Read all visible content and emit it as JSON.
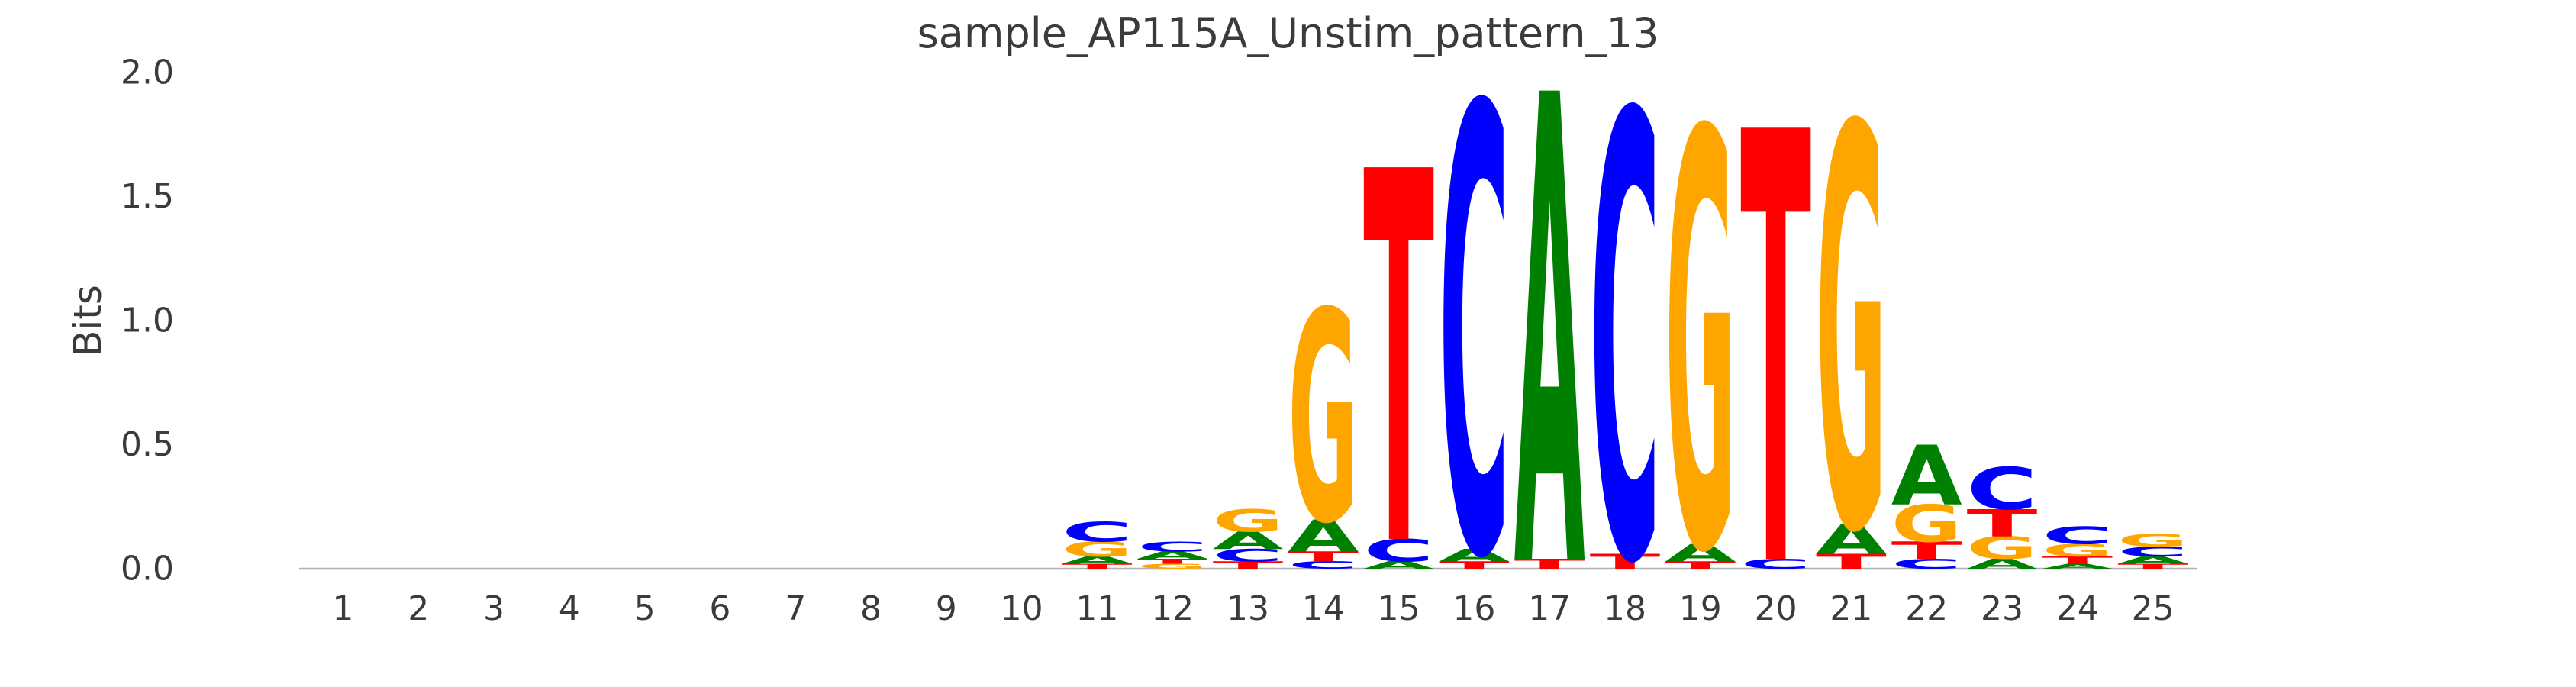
{
  "title": "sample_AP115A_Unstim_pattern_13",
  "ylabel": "Bits",
  "chart_data": {
    "type": "sequence_logo",
    "unit": "bits",
    "title": "sample_AP115A_Unstim_pattern_13",
    "xlabel": "",
    "ylabel": "Bits",
    "ylim": [
      0,
      2
    ],
    "yticks": [
      0.0,
      0.5,
      1.0,
      1.5,
      2.0
    ],
    "xticks": [
      1,
      2,
      3,
      4,
      5,
      6,
      7,
      8,
      9,
      10,
      11,
      12,
      13,
      14,
      15,
      16,
      17,
      18,
      19,
      20,
      21,
      22,
      23,
      24,
      25
    ],
    "consensus_core": "GTCACGTG",
    "consensus_core_positions": [
      14,
      21
    ],
    "grid": false,
    "legend": "none",
    "colors": {
      "A": "#008000",
      "C": "#0000ff",
      "G": "#ffa500",
      "T": "#ff0000"
    },
    "axis_text_color": "#3b3b3b",
    "baseline_color": "#b0b0b0",
    "stack_order": "bottom_to_top",
    "positions": [
      {
        "pos": 1,
        "stack": []
      },
      {
        "pos": 2,
        "stack": []
      },
      {
        "pos": 3,
        "stack": []
      },
      {
        "pos": 4,
        "stack": []
      },
      {
        "pos": 5,
        "stack": []
      },
      {
        "pos": 6,
        "stack": []
      },
      {
        "pos": 7,
        "stack": []
      },
      {
        "pos": 8,
        "stack": []
      },
      {
        "pos": 9,
        "stack": []
      },
      {
        "pos": 10,
        "stack": []
      },
      {
        "pos": 11,
        "stack": [
          {
            "base": "T",
            "bits": 0.02
          },
          {
            "base": "A",
            "bits": 0.03
          },
          {
            "base": "G",
            "bits": 0.06
          },
          {
            "base": "C",
            "bits": 0.08
          }
        ]
      },
      {
        "pos": 12,
        "stack": [
          {
            "base": "G",
            "bits": 0.02
          },
          {
            "base": "T",
            "bits": 0.02
          },
          {
            "base": "A",
            "bits": 0.03
          },
          {
            "base": "C",
            "bits": 0.04
          }
        ]
      },
      {
        "pos": 13,
        "stack": [
          {
            "base": "T",
            "bits": 0.03
          },
          {
            "base": "C",
            "bits": 0.05
          },
          {
            "base": "A",
            "bits": 0.07
          },
          {
            "base": "G",
            "bits": 0.09
          }
        ]
      },
      {
        "pos": 14,
        "stack": [
          {
            "base": "C",
            "bits": 0.03
          },
          {
            "base": "T",
            "bits": 0.04
          },
          {
            "base": "A",
            "bits": 0.13
          },
          {
            "base": "G",
            "bits": 0.85
          }
        ]
      },
      {
        "pos": 15,
        "stack": [
          {
            "base": "A",
            "bits": 0.03
          },
          {
            "base": "C",
            "bits": 0.09
          },
          {
            "base": "T",
            "bits": 1.5
          }
        ]
      },
      {
        "pos": 16,
        "stack": [
          {
            "base": "T",
            "bits": 0.03
          },
          {
            "base": "A",
            "bits": 0.05
          },
          {
            "base": "C",
            "bits": 1.8
          }
        ]
      },
      {
        "pos": 17,
        "stack": [
          {
            "base": "T",
            "bits": 0.04
          },
          {
            "base": "A",
            "bits": 1.89
          }
        ]
      },
      {
        "pos": 18,
        "stack": [
          {
            "base": "T",
            "bits": 0.06
          },
          {
            "base": "C",
            "bits": 1.79
          }
        ]
      },
      {
        "pos": 19,
        "stack": [
          {
            "base": "T",
            "bits": 0.03
          },
          {
            "base": "A",
            "bits": 0.07
          },
          {
            "base": "G",
            "bits": 1.68
          }
        ]
      },
      {
        "pos": 20,
        "stack": [
          {
            "base": "C",
            "bits": 0.04
          },
          {
            "base": "T",
            "bits": 1.74
          }
        ]
      },
      {
        "pos": 21,
        "stack": [
          {
            "base": "T",
            "bits": 0.06
          },
          {
            "base": "A",
            "bits": 0.12
          },
          {
            "base": "G",
            "bits": 1.62
          }
        ]
      },
      {
        "pos": 22,
        "stack": [
          {
            "base": "C",
            "bits": 0.04
          },
          {
            "base": "T",
            "bits": 0.07
          },
          {
            "base": "G",
            "bits": 0.15
          },
          {
            "base": "A",
            "bits": 0.24
          }
        ]
      },
      {
        "pos": 23,
        "stack": [
          {
            "base": "A",
            "bits": 0.04
          },
          {
            "base": "G",
            "bits": 0.09
          },
          {
            "base": "T",
            "bits": 0.11
          },
          {
            "base": "C",
            "bits": 0.17
          }
        ]
      },
      {
        "pos": 24,
        "stack": [
          {
            "base": "A",
            "bits": 0.02
          },
          {
            "base": "T",
            "bits": 0.03
          },
          {
            "base": "G",
            "bits": 0.05
          },
          {
            "base": "C",
            "bits": 0.07
          }
        ]
      },
      {
        "pos": 25,
        "stack": [
          {
            "base": "T",
            "bits": 0.02
          },
          {
            "base": "A",
            "bits": 0.03
          },
          {
            "base": "C",
            "bits": 0.04
          },
          {
            "base": "G",
            "bits": 0.05
          }
        ]
      }
    ]
  }
}
